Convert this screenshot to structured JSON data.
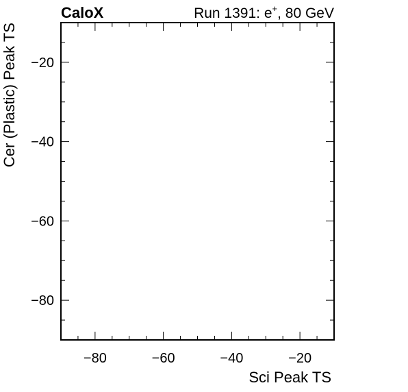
{
  "chart_data": {
    "type": "scatter",
    "title": "",
    "experiment_label": "CaloX",
    "run_label": {
      "prefix": "Run 1391: e",
      "superscript": "+",
      "suffix": ", 80 GeV"
    },
    "xlabel": "Sci Peak TS",
    "ylabel": "Cer (Plastic) Peak TS",
    "xlim": [
      -90,
      -10
    ],
    "ylim": [
      -90,
      -10
    ],
    "x_major_ticks": [
      -80,
      -60,
      -40,
      -20
    ],
    "y_major_ticks": [
      -80,
      -60,
      -40,
      -20
    ],
    "x_tick_labels": [
      "−80",
      "−60",
      "−40",
      "−20"
    ],
    "y_tick_labels": [
      "−80",
      "−60",
      "−40",
      "−20"
    ],
    "grid": false,
    "series": [
      {
        "points": []
      }
    ]
  }
}
